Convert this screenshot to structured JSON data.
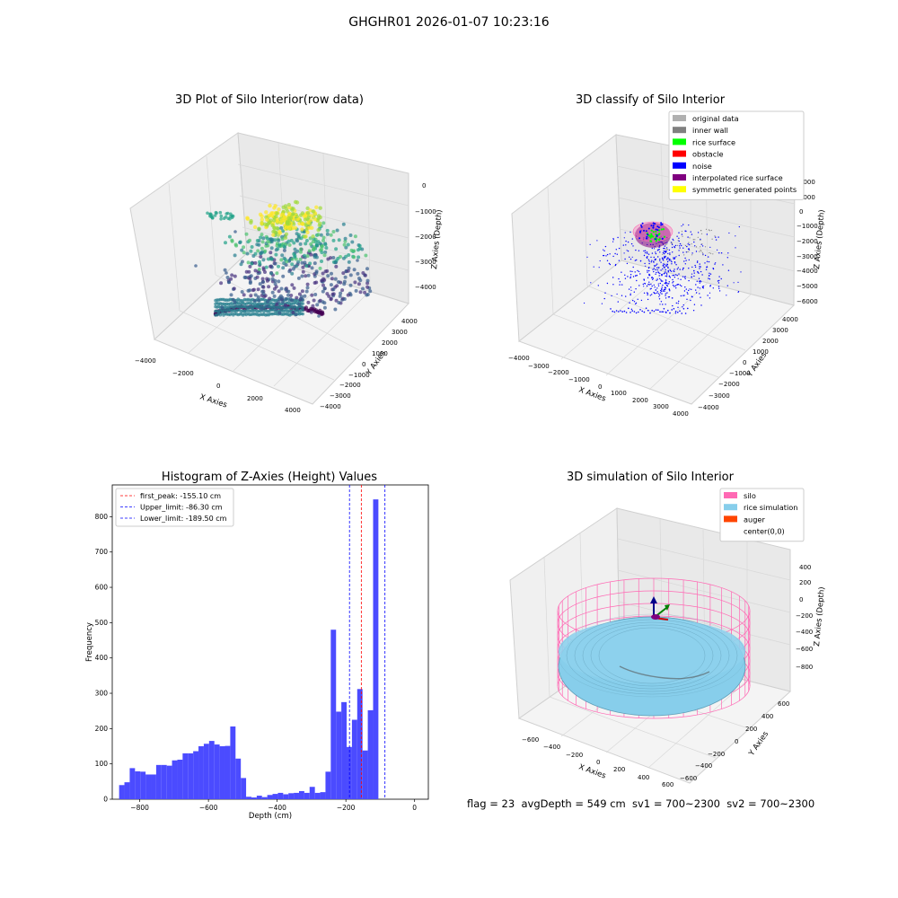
{
  "figure": {
    "suptitle": "GHGHR01 2026-01-07 10:23:16",
    "footer": "flag = 23  avgDepth = 549 cm  sv1 = 700~2300  sv2 = 700~2300"
  },
  "chart_data": [
    {
      "type": "scatter",
      "title": "3D Plot of Silo Interior(row data)",
      "xlabel": "X Axies",
      "ylabel": "Y Axies",
      "zlabel": "Z Axies (Depth)",
      "xticks": [
        "−4000",
        "−2000",
        "0",
        "2000",
        "4000"
      ],
      "yticks": [
        "4000",
        "3000",
        "2000",
        "1000",
        "0",
        "−1000",
        "−2000",
        "−3000",
        "−4000"
      ],
      "zticks": [
        "0",
        "−1000",
        "−2000",
        "−3000",
        "−4000"
      ],
      "colormap": "viridis"
    },
    {
      "type": "scatter",
      "title": "3D classify of Silo Interior",
      "xlabel": "X Axies",
      "ylabel": "Y Axies",
      "zlabel": "Z Axies (Depth)",
      "xticks": [
        "−4000",
        "−3000",
        "−2000",
        "−1000",
        "0",
        "1000",
        "2000",
        "3000",
        "4000"
      ],
      "yticks": [
        "4000",
        "3000",
        "2000",
        "1000",
        "0",
        "−1000",
        "−2000",
        "−3000",
        "−4000"
      ],
      "zticks": [
        "2000",
        "1000",
        "0",
        "−1000",
        "−2000",
        "−3000",
        "−4000",
        "−5000",
        "−6000"
      ],
      "legend_position": "top-right",
      "legend": [
        {
          "label": "original data",
          "color": "#b0b0b0"
        },
        {
          "label": "inner wall",
          "color": "#808080"
        },
        {
          "label": "rice surface",
          "color": "#00ff00"
        },
        {
          "label": "obstacle",
          "color": "#ff0000"
        },
        {
          "label": "noise",
          "color": "#0000ff"
        },
        {
          "label": "interpolated rice surface",
          "color": "#800080"
        },
        {
          "label": "symmetric generated points",
          "color": "#ffff00"
        }
      ]
    },
    {
      "type": "bar",
      "title": "Histogram of Z-Axies (Height) Values",
      "xlabel": "Depth (cm)",
      "ylabel": "Frequency",
      "xlim": [
        -880,
        40
      ],
      "ylim": [
        0,
        890
      ],
      "xticks": [
        -800,
        -600,
        -400,
        -200,
        0
      ],
      "yticks": [
        0,
        100,
        200,
        300,
        400,
        500,
        600,
        700,
        800
      ],
      "bin_width": 15.4,
      "bin_start": -860,
      "values": [
        40,
        48,
        88,
        79,
        78,
        70,
        70,
        97,
        97,
        95,
        110,
        112,
        130,
        130,
        136,
        150,
        157,
        165,
        155,
        150,
        151,
        206,
        115,
        60,
        7,
        5,
        10,
        6,
        12,
        15,
        18,
        14,
        17,
        18,
        23,
        18,
        35,
        18,
        20,
        78,
        480,
        248,
        275,
        148,
        225,
        312,
        138,
        252,
        849
      ],
      "bar_color": "#4b4bff",
      "vlines": [
        {
          "label": "first_peak: -155.10 cm",
          "x": -155.1,
          "color": "#ff0000"
        },
        {
          "label": "Upper_limit: -86.30 cm",
          "x": -86.3,
          "color": "#0000ff"
        },
        {
          "label": "Lower_limit: -189.50 cm",
          "x": -189.5,
          "color": "#0000ff"
        }
      ],
      "legend_position": "top-left"
    },
    {
      "type": "surface",
      "title": "3D simulation of Silo Interior",
      "xlabel": "X Axies",
      "ylabel": "Y Axies",
      "zlabel": "Z Axies (Depth)",
      "xticks": [
        "−600",
        "−400",
        "−200",
        "0",
        "200",
        "400",
        "600"
      ],
      "yticks": [
        "600",
        "400",
        "200",
        "0",
        "−200",
        "−400",
        "−600"
      ],
      "zticks": [
        "400",
        "200",
        "0",
        "−200",
        "−400",
        "−600",
        "−800"
      ],
      "legend_position": "top-right",
      "legend": [
        {
          "label": "silo",
          "color": "#ff69b4"
        },
        {
          "label": "rice simulation",
          "color": "#87ceeb"
        },
        {
          "label": "auger",
          "color": "#ff4500"
        },
        {
          "label": "center(0,0)",
          "color": ""
        }
      ]
    }
  ]
}
